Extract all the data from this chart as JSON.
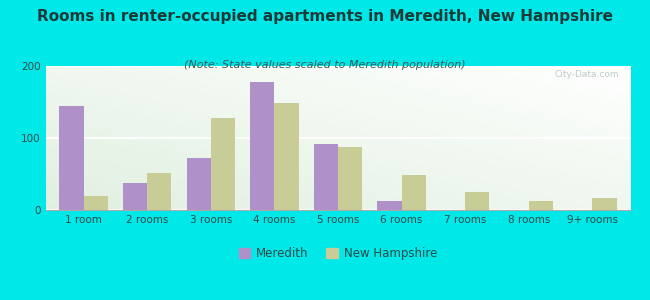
{
  "title": "Rooms in renter-occupied apartments in Meredith, New Hampshire",
  "subtitle": "(Note: State values scaled to Meredith population)",
  "categories": [
    "1 room",
    "2 rooms",
    "3 rooms",
    "4 rooms",
    "5 rooms",
    "6 rooms",
    "7 rooms",
    "8 rooms",
    "9+ rooms"
  ],
  "meredith_values": [
    145,
    38,
    72,
    178,
    92,
    12,
    0,
    0,
    0
  ],
  "nh_values": [
    20,
    52,
    128,
    148,
    87,
    48,
    25,
    13,
    17
  ],
  "meredith_color": "#b090c8",
  "nh_color": "#c8cc96",
  "background_outer": "#00e8e8",
  "ylim": [
    0,
    200
  ],
  "yticks": [
    0,
    100,
    200
  ],
  "title_fontsize": 11,
  "subtitle_fontsize": 8,
  "tick_fontsize": 7.5,
  "legend_fontsize": 8.5,
  "bar_width": 0.38,
  "title_color": "#1a3a3a",
  "subtitle_color": "#3a5a5a",
  "tick_color": "#2a4a4a"
}
